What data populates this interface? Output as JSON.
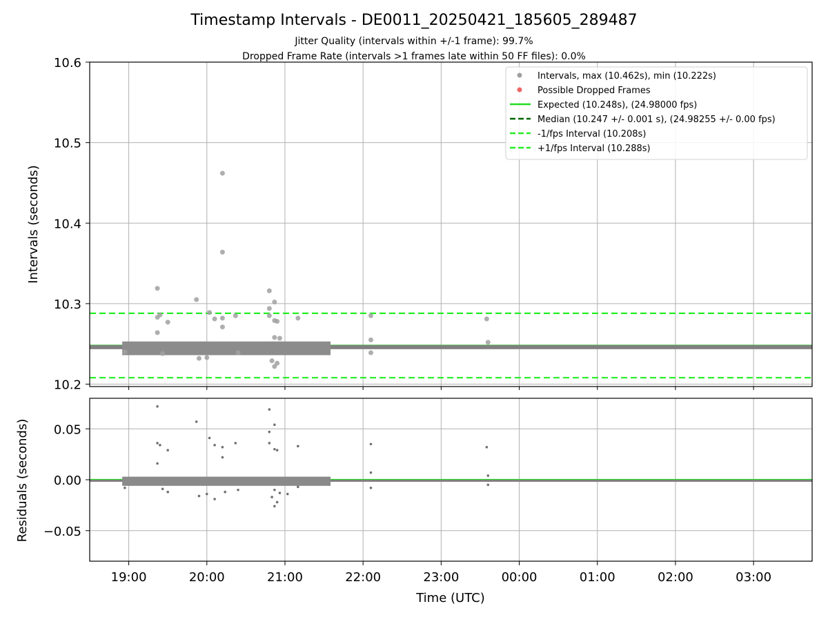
{
  "chart_data": [
    {
      "type": "scatter",
      "title": "Timestamp Intervals - DE0011_20250421_185605_289487",
      "subtitle": [
        "Jitter Quality (intervals within +/-1 frame): 99.7%",
        "Dropped Frame Rate (intervals >1 frames late within 50 FF files): 0.0%"
      ],
      "xlabel": "",
      "ylabel": "Intervals (seconds)",
      "xlim": [
        "18:30",
        "03:45"
      ],
      "ylim": [
        10.197,
        10.6
      ],
      "yticks": [
        10.2,
        10.3,
        10.4,
        10.5,
        10.6
      ],
      "ytick_labels": [
        "10.2",
        "10.3",
        "10.4",
        "10.5",
        "10.6"
      ],
      "grid": true,
      "legend_position": "top-right",
      "legend": [
        {
          "label": "Intervals, max (10.462s), min (10.222s)",
          "kind": "marker",
          "color": "#a0a0a0"
        },
        {
          "label": "Possible Dropped Frames",
          "kind": "marker",
          "color": "#f06666"
        },
        {
          "label": "Expected (10.248s), (24.98000 fps)",
          "kind": "solid",
          "color": "#22dd22"
        },
        {
          "label": "Median (10.247 +/- 0.001 s), (24.98255 +/- 0.00 fps)",
          "kind": "dashed",
          "color": "#006400"
        },
        {
          "label": "-1/fps Interval (10.208s)",
          "kind": "dashed",
          "color": "#22ee22"
        },
        {
          "label": "+1/fps Interval (10.288s)",
          "kind": "dashed",
          "color": "#22ee22"
        }
      ],
      "reference_lines": {
        "expected": 10.248,
        "median": 10.247,
        "minus_fps": 10.208,
        "plus_fps": 10.288
      },
      "baseline": {
        "start": "18:30",
        "end": "03:45",
        "value": 10.246
      },
      "series": [
        {
          "name": "Intervals, max (10.462s), min (10.222s)",
          "points": [
            [
              "19:22",
              10.319
            ],
            [
              "19:22",
              10.283
            ],
            [
              "19:22",
              10.264
            ],
            [
              "19:24",
              10.286
            ],
            [
              "19:30",
              10.277
            ],
            [
              "19:52",
              10.305
            ],
            [
              "20:02",
              10.289
            ],
            [
              "20:12",
              10.462
            ],
            [
              "20:12",
              10.364
            ],
            [
              "20:12",
              10.282
            ],
            [
              "20:12",
              10.271
            ],
            [
              "20:06",
              10.281
            ],
            [
              "20:22",
              10.285
            ],
            [
              "20:48",
              10.316
            ],
            [
              "20:48",
              10.294
            ],
            [
              "20:48",
              10.285
            ],
            [
              "20:52",
              10.302
            ],
            [
              "20:52",
              10.279
            ],
            [
              "20:54",
              10.278
            ],
            [
              "21:10",
              10.282
            ],
            [
              "20:52",
              10.258
            ],
            [
              "20:56",
              10.257
            ],
            [
              "20:52",
              10.222
            ],
            [
              "20:54",
              10.226
            ],
            [
              "20:50",
              10.229
            ],
            [
              "22:06",
              10.285
            ],
            [
              "22:06",
              10.255
            ],
            [
              "22:06",
              10.239
            ],
            [
              "23:35",
              10.281
            ],
            [
              "23:36",
              10.252
            ],
            [
              "19:54",
              10.232
            ],
            [
              "20:00",
              10.233
            ],
            [
              "19:26",
              10.238
            ],
            [
              "20:24",
              10.239
            ],
            [
              "18:57",
              10.24
            ]
          ]
        }
      ]
    },
    {
      "type": "scatter",
      "title": "",
      "xlabel": "Time (UTC)",
      "ylabel": "Residuals (seconds)",
      "xlim": [
        "18:30",
        "03:45"
      ],
      "ylim": [
        -0.08,
        0.08
      ],
      "yticks": [
        -0.05,
        0.0,
        0.05
      ],
      "ytick_labels": [
        "−0.05",
        "0.00",
        "0.05"
      ],
      "xticks": [
        "19:00",
        "20:00",
        "21:00",
        "22:00",
        "23:00",
        "00:00",
        "01:00",
        "02:00",
        "03:00"
      ],
      "grid": true,
      "reference_lines": {
        "expected": 0.0,
        "median": -0.001
      },
      "baseline": {
        "start": "18:30",
        "end": "03:45",
        "value": -0.001
      },
      "series": [
        {
          "name": "Residuals",
          "points": [
            [
              "19:22",
              0.072
            ],
            [
              "19:22",
              0.036
            ],
            [
              "19:24",
              0.034
            ],
            [
              "19:30",
              0.029
            ],
            [
              "19:22",
              0.016
            ],
            [
              "19:52",
              0.057
            ],
            [
              "20:02",
              0.041
            ],
            [
              "20:12",
              0.032
            ],
            [
              "20:12",
              0.022
            ],
            [
              "20:06",
              0.034
            ],
            [
              "20:22",
              0.036
            ],
            [
              "20:48",
              0.069
            ],
            [
              "20:48",
              0.047
            ],
            [
              "20:48",
              0.036
            ],
            [
              "20:52",
              0.054
            ],
            [
              "20:52",
              0.03
            ],
            [
              "20:54",
              0.029
            ],
            [
              "21:10",
              0.033
            ],
            [
              "22:06",
              0.035
            ],
            [
              "22:06",
              0.007
            ],
            [
              "22:06",
              -0.008
            ],
            [
              "23:35",
              0.032
            ],
            [
              "23:36",
              0.004
            ],
            [
              "23:36",
              -0.005
            ],
            [
              "20:52",
              -0.026
            ],
            [
              "20:54",
              -0.022
            ],
            [
              "20:50",
              -0.017
            ],
            [
              "20:56",
              -0.013
            ],
            [
              "20:52",
              -0.01
            ],
            [
              "19:54",
              -0.016
            ],
            [
              "20:00",
              -0.014
            ],
            [
              "20:06",
              -0.019
            ],
            [
              "19:26",
              -0.009
            ],
            [
              "19:30",
              -0.012
            ],
            [
              "20:24",
              -0.01
            ],
            [
              "18:57",
              -0.008
            ],
            [
              "21:10",
              -0.007
            ],
            [
              "21:02",
              -0.014
            ],
            [
              "20:14",
              -0.012
            ]
          ]
        }
      ]
    }
  ]
}
